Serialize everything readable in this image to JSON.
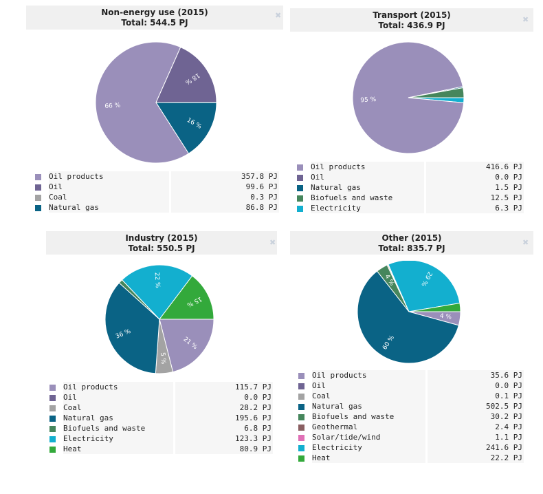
{
  "colors": {
    "Oil products": "#9a8fba",
    "Oil": "#6f6493",
    "Coal": "#a3a3a3",
    "Natural gas": "#0a6385",
    "Biofuels and waste": "#46865c",
    "Electricity": "#13afcf",
    "Heat": "#33a93b",
    "Geothermal": "#8a5f62",
    "Solar/tide/wind": "#e070b6"
  },
  "close_icon": "close-icon",
  "chart_data": [
    {
      "type": "pie",
      "title": "Non-energy use (2015)",
      "subtitle": "Total: 544.5 PJ",
      "unit": "PJ",
      "categories": [
        "Oil products",
        "Oil",
        "Coal",
        "Natural gas"
      ],
      "values": [
        357.8,
        99.6,
        0.3,
        86.8
      ],
      "value_labels": [
        "357.8 PJ",
        "99.6 PJ",
        "0.3 PJ",
        "86.8 PJ"
      ],
      "pie_order": [
        "Natural gas",
        "Oil products",
        "Oil",
        "Coal"
      ],
      "slice_labels": {
        "Oil products": "66 %",
        "Oil": "18 %",
        "Natural gas": "16 %"
      }
    },
    {
      "type": "pie",
      "title": "Transport (2015)",
      "subtitle": "Total: 436.9 PJ",
      "unit": "PJ",
      "categories": [
        "Oil products",
        "Oil",
        "Natural gas",
        "Biofuels and waste",
        "Electricity"
      ],
      "values": [
        416.6,
        0.0,
        1.5,
        12.5,
        6.3
      ],
      "value_labels": [
        "416.6 PJ",
        "0.0 PJ",
        "1.5 PJ",
        "12.5 PJ",
        "6.3 PJ"
      ],
      "pie_order": [
        "Electricity",
        "Oil products",
        "Oil",
        "Natural gas",
        "Biofuels and waste"
      ],
      "slice_labels": {
        "Oil products": "95 %"
      }
    },
    {
      "type": "pie",
      "title": "Industry (2015)",
      "subtitle": "Total: 550.5 PJ",
      "unit": "PJ",
      "categories": [
        "Oil products",
        "Oil",
        "Coal",
        "Natural gas",
        "Biofuels and waste",
        "Electricity",
        "Heat"
      ],
      "values": [
        115.7,
        0.0,
        28.2,
        195.6,
        6.8,
        123.3,
        80.9
      ],
      "value_labels": [
        "115.7 PJ",
        "0.0 PJ",
        "28.2 PJ",
        "195.6 PJ",
        "6.8 PJ",
        "123.3 PJ",
        "80.9 PJ"
      ],
      "pie_order": [
        "Oil products",
        "Oil",
        "Coal",
        "Natural gas",
        "Biofuels and waste",
        "Electricity",
        "Heat"
      ],
      "slice_labels": {
        "Oil products": "21 %",
        "Coal": "5 %",
        "Natural gas": "36 %",
        "Electricity": "22 %",
        "Heat": "15 %"
      }
    },
    {
      "type": "pie",
      "title": "Other (2015)",
      "subtitle": "Total: 835.7 PJ",
      "unit": "PJ",
      "categories": [
        "Oil products",
        "Oil",
        "Coal",
        "Natural gas",
        "Biofuels and waste",
        "Geothermal",
        "Solar/tide/wind",
        "Electricity",
        "Heat"
      ],
      "values": [
        35.6,
        0.0,
        0.1,
        502.5,
        30.2,
        2.4,
        1.1,
        241.6,
        22.2
      ],
      "value_labels": [
        "35.6 PJ",
        "0.0 PJ",
        "0.1 PJ",
        "502.5 PJ",
        "30.2 PJ",
        "2.4 PJ",
        "1.1 PJ",
        "241.6 PJ",
        "22.2 PJ"
      ],
      "pie_order": [
        "Oil products",
        "Oil",
        "Coal",
        "Natural gas",
        "Biofuels and waste",
        "Geothermal",
        "Solar/tide/wind",
        "Electricity",
        "Heat"
      ],
      "slice_labels": {
        "Oil products": "4 %",
        "Natural gas": "60 %",
        "Biofuels and waste": "4 %",
        "Electricity": "29 %"
      }
    }
  ]
}
